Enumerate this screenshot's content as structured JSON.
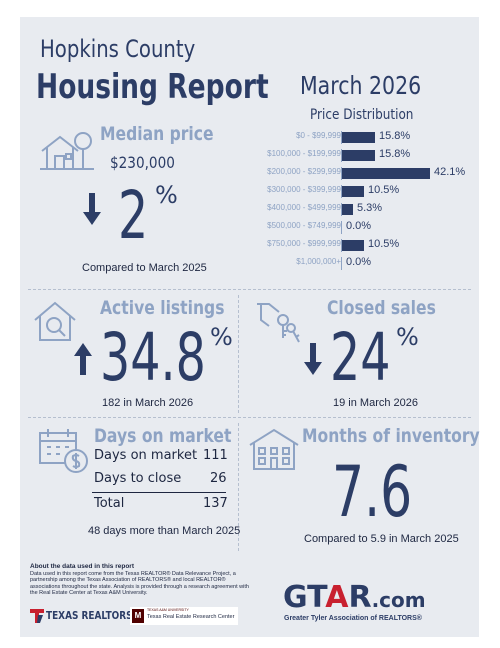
{
  "header": {
    "county": "Hopkins County",
    "report": "Housing Report",
    "month": "March 2026"
  },
  "price_distribution": {
    "title": "Price Distribution",
    "rows": [
      {
        "label": "$0 - $99,999",
        "value": 15.8,
        "display": "15.8%"
      },
      {
        "label": "$100,000 - $199,999",
        "value": 15.8,
        "display": "15.8%"
      },
      {
        "label": "$200,000 - $299,999",
        "value": 42.1,
        "display": "42.1%"
      },
      {
        "label": "$300,000 - $399,999",
        "value": 10.5,
        "display": "10.5%"
      },
      {
        "label": "$400,000 - $499,999",
        "value": 5.3,
        "display": "5.3%"
      },
      {
        "label": "$500,000 - $749,999",
        "value": 0.0,
        "display": "0.0%"
      },
      {
        "label": "$750,000 - $999,999",
        "value": 10.5,
        "display": "10.5%"
      },
      {
        "label": "$1,000,000+",
        "value": 0.0,
        "display": "0.0%"
      }
    ]
  },
  "median_price": {
    "title": "Median price",
    "value": "$230,000",
    "change": "2",
    "percent": "%",
    "direction": "down",
    "note": "Compared to March 2025"
  },
  "active_listings": {
    "title": "Active listings",
    "change": "34.8",
    "percent": "%",
    "direction": "up",
    "note": "182 in March 2026"
  },
  "closed_sales": {
    "title": "Closed sales",
    "change": "24",
    "percent": "%",
    "direction": "down",
    "note": "19 in March 2026"
  },
  "days_on_market": {
    "title": "Days on market",
    "rows": [
      {
        "label": "Days on market",
        "value": "111"
      },
      {
        "label": "Days to close",
        "value": "26"
      },
      {
        "label": "Total",
        "value": "137"
      }
    ],
    "note": "48 days more than March 2025"
  },
  "months_inventory": {
    "title": "Months of inventory",
    "value": "7.6",
    "note": "Compared to 5.9 in March 2025"
  },
  "footer": {
    "about_title": "About the data used in this report",
    "about_text": "Data used in this report come from the Texas REALTOR® Data Relevance Project, a partnership among the Texas Association of REALTORS® and local REALTOR® associations throughout the state. Analysis is provided through a research agreement with the Real Estate Center at Texas A&M University.",
    "tr_logo": "TEXAS REALTORS",
    "tamu_small": "TEXAS A&M UNIVERSITY",
    "tamu_center": "Texas Real Estate Research Center",
    "gtar_logo": "GTAR.com",
    "gtar_sub": "Greater Tyler Association of REALTORS®"
  },
  "colors": {
    "navy": "#2c3d66",
    "steel": "#8ea3c4",
    "red": "#c8202f",
    "background": "#e8ebf0"
  }
}
